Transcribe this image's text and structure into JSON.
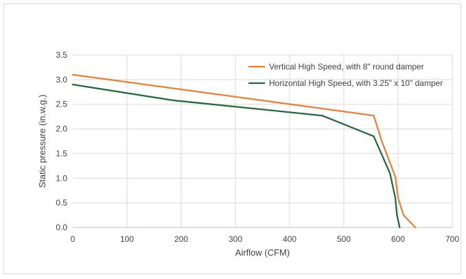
{
  "chart_data": {
    "type": "line",
    "xlabel": "Airflow (CFM)",
    "ylabel": "Static pressure (in.w.g.)",
    "xlim": [
      0,
      700
    ],
    "ylim": [
      0,
      3.5
    ],
    "x_ticks": [
      0,
      100,
      200,
      300,
      400,
      500,
      600,
      700
    ],
    "x_tick_labels": [
      "0",
      "100",
      "200",
      "300",
      "400",
      "500",
      "600",
      "700"
    ],
    "y_ticks": [
      0,
      0.5,
      1.0,
      1.5,
      2.0,
      2.5,
      3.0,
      3.5
    ],
    "y_tick_labels": [
      "0.0",
      "0.5",
      "1.0",
      "1.5",
      "2.0",
      "2.5",
      "3.0",
      "3.5"
    ],
    "grid": true,
    "legend_position": "top-right",
    "series": [
      {
        "name": "Vertical High Speed, with 8\" round damper",
        "color": "#ED7D31",
        "x": [
          0,
          555,
          570,
          595,
          600,
          610,
          632
        ],
        "y": [
          3.1,
          2.27,
          1.75,
          1.03,
          0.6,
          0.25,
          0.0
        ]
      },
      {
        "name": "Horizontal High Speed, with 3.25\" x 10\" damper",
        "color": "#1E6B35",
        "x": [
          0,
          185,
          460,
          555,
          585,
          595,
          598,
          603
        ],
        "y": [
          2.9,
          2.58,
          2.27,
          1.85,
          1.1,
          0.6,
          0.25,
          0.0
        ]
      }
    ]
  }
}
